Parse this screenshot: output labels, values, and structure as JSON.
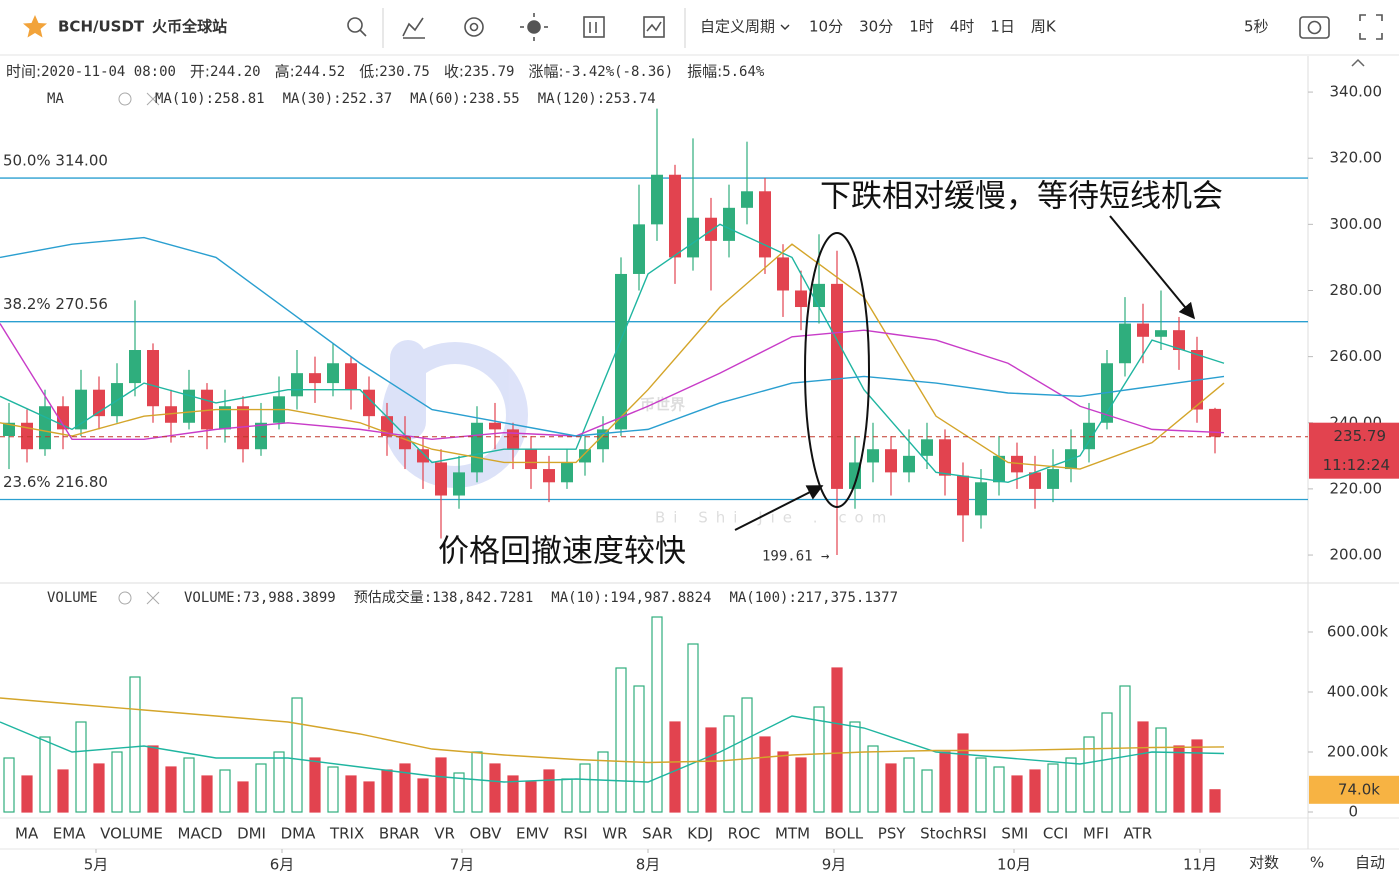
{
  "toolbar": {
    "symbol": "BCH/USDT",
    "exchange": "火币全球站",
    "periods": [
      "自定义周期",
      "10分",
      "30分",
      "1时",
      "4时",
      "1日",
      "周K"
    ],
    "active_period": "1日",
    "refresh": "5秒"
  },
  "info": [
    {
      "label": "时间:",
      "value": "2020-11-04 08:00"
    },
    {
      "label": "开:",
      "value": "244.20"
    },
    {
      "label": "高:",
      "value": "244.52"
    },
    {
      "label": "低:",
      "value": "230.75"
    },
    {
      "label": "收:",
      "value": "235.79"
    },
    {
      "label": "涨幅:",
      "value": "-3.42%(-8.36)"
    },
    {
      "label": "振幅:",
      "value": "5.64%"
    }
  ],
  "price": {
    "legend": {
      "name": "MA",
      "items": [
        {
          "text": "MA(10):258.81",
          "color": "#1fb5a0",
          "values": [
            248,
            238,
            252,
            246,
            250,
            250,
            228,
            232,
            232,
            285,
            300,
            290,
            250,
            225,
            222,
            230,
            265,
            258
          ]
        },
        {
          "text": "MA(30):252.37",
          "color": "#d4a52a",
          "values": [
            240,
            236,
            242,
            244,
            244,
            240,
            232,
            228,
            228,
            250,
            275,
            294,
            278,
            242,
            228,
            226,
            234,
            252
          ]
        },
        {
          "text": "MA(60):238.55",
          "color": "#c83cc8",
          "values": [
            270,
            235,
            235,
            238,
            240,
            238,
            235,
            237,
            236,
            245,
            255,
            266,
            268,
            265,
            258,
            245,
            238,
            237
          ]
        },
        {
          "text": "MA(120):253.74",
          "color": "#2a9fd0",
          "values": [
            290,
            294,
            296,
            290,
            274,
            258,
            244,
            240,
            236,
            238,
            246,
            252,
            254,
            252,
            249,
            248,
            251,
            254
          ]
        }
      ]
    },
    "xlim": [
      0,
      218
    ],
    "ylim": [
      192,
      350
    ],
    "yticks": [
      {
        "value": 200,
        "label": "200.00"
      },
      {
        "value": 220,
        "label": "220.00"
      },
      {
        "value": 240,
        "label": "240.00"
      },
      {
        "value": 260,
        "label": "260.00"
      },
      {
        "value": 280,
        "label": "280.00"
      },
      {
        "value": 300,
        "label": "300.00"
      },
      {
        "value": 320,
        "label": "320.00"
      },
      {
        "value": 340,
        "label": "340.00"
      }
    ],
    "ma_x": [
      0,
      12,
      24,
      36,
      48,
      60,
      72,
      84,
      96,
      108,
      120,
      132,
      144,
      156,
      168,
      180,
      192,
      204
    ],
    "x": [
      1.5,
      4.5,
      7.5,
      10.5,
      13.5,
      16.5,
      19.5,
      22.5,
      25.5,
      28.5,
      31.5,
      34.5,
      37.5,
      40.5,
      43.5,
      46.5,
      49.5,
      52.5,
      55.5,
      58.5,
      61.5,
      64.5,
      67.5,
      70.5,
      73.5,
      76.5,
      79.5,
      82.5,
      85.5,
      88.5,
      91.5,
      94.5,
      97.5,
      100.5,
      103.5,
      106.5,
      109.5,
      112.5,
      115.5,
      118.5,
      121.5,
      124.5,
      127.5,
      130.5,
      133.5,
      136.5,
      139.5,
      142.5,
      145.5,
      148.5,
      151.5,
      154.5,
      157.5,
      160.5,
      163.5,
      166.5,
      169.5,
      172.5,
      175.5,
      178.5,
      181.5,
      184.5,
      187.5,
      190.5,
      193.5,
      196.5,
      199.5,
      202.5
    ],
    "candles": [
      [
        236,
        246,
        226,
        240
      ],
      [
        240,
        244,
        228,
        232
      ],
      [
        232,
        250,
        230,
        245
      ],
      [
        245,
        248,
        232,
        238
      ],
      [
        238,
        256,
        236,
        250
      ],
      [
        250,
        254,
        238,
        242
      ],
      [
        242,
        258,
        240,
        252
      ],
      [
        252,
        277,
        248,
        262
      ],
      [
        262,
        264,
        240,
        245
      ],
      [
        245,
        250,
        234,
        240
      ],
      [
        240,
        256,
        238,
        250
      ],
      [
        250,
        252,
        232,
        238
      ],
      [
        238,
        250,
        234,
        245
      ],
      [
        245,
        248,
        228,
        232
      ],
      [
        232,
        246,
        230,
        240
      ],
      [
        240,
        254,
        238,
        248
      ],
      [
        248,
        262,
        244,
        255
      ],
      [
        255,
        260,
        246,
        252
      ],
      [
        252,
        264,
        248,
        258
      ],
      [
        258,
        260,
        244,
        250
      ],
      [
        250,
        254,
        238,
        242
      ],
      [
        242,
        246,
        230,
        236
      ],
      [
        236,
        242,
        226,
        232
      ],
      [
        232,
        236,
        220,
        228
      ],
      [
        228,
        232,
        205,
        218
      ],
      [
        218,
        230,
        214,
        225
      ],
      [
        225,
        245,
        222,
        240
      ],
      [
        240,
        246,
        232,
        238
      ],
      [
        238,
        240,
        226,
        232
      ],
      [
        232,
        236,
        220,
        226
      ],
      [
        226,
        230,
        216,
        222
      ],
      [
        222,
        232,
        220,
        228
      ],
      [
        228,
        236,
        224,
        232
      ],
      [
        232,
        242,
        228,
        238
      ],
      [
        238,
        290,
        236,
        285
      ],
      [
        285,
        312,
        280,
        300
      ],
      [
        300,
        335,
        295,
        315
      ],
      [
        315,
        318,
        282,
        290
      ],
      [
        290,
        326,
        286,
        302
      ],
      [
        302,
        308,
        280,
        295
      ],
      [
        295,
        312,
        290,
        305
      ],
      [
        305,
        325,
        300,
        310
      ],
      [
        310,
        314,
        285,
        290
      ],
      [
        290,
        294,
        272,
        280
      ],
      [
        280,
        286,
        268,
        275
      ],
      [
        275,
        297,
        270,
        282
      ],
      [
        282,
        292,
        200,
        220
      ],
      [
        220,
        236,
        214,
        228
      ],
      [
        228,
        240,
        222,
        232
      ],
      [
        232,
        236,
        218,
        225
      ],
      [
        225,
        238,
        222,
        230
      ],
      [
        230,
        240,
        226,
        235
      ],
      [
        235,
        238,
        218,
        224
      ],
      [
        224,
        228,
        204,
        212
      ],
      [
        212,
        226,
        208,
        222
      ],
      [
        222,
        236,
        218,
        230
      ],
      [
        230,
        234,
        220,
        225
      ],
      [
        225,
        230,
        214,
        220
      ],
      [
        220,
        232,
        216,
        226
      ],
      [
        226,
        238,
        222,
        232
      ],
      [
        232,
        246,
        228,
        240
      ],
      [
        240,
        262,
        238,
        258
      ],
      [
        258,
        278,
        254,
        270
      ],
      [
        270,
        276,
        258,
        266
      ],
      [
        266,
        280,
        262,
        268
      ],
      [
        268,
        272,
        256,
        262
      ],
      [
        262,
        266,
        240,
        244
      ],
      [
        244.2,
        244.52,
        230.75,
        235.79
      ]
    ],
    "up_color": "#2fae7d",
    "down_color": "#e2434f",
    "fib": [
      {
        "label": "50.0% 314.00",
        "value": 314
      },
      {
        "label": "38.2% 270.56",
        "value": 270.56
      },
      {
        "label": "23.6% 216.80",
        "value": 216.8
      }
    ],
    "last": {
      "value": 235.79,
      "label": "235.79"
    },
    "countdown": "11:12:24",
    "low_mark": {
      "value": 199.61,
      "x": 140,
      "label": "199.61 →"
    },
    "annotations": [
      "下跌相对缓慢，等待短线机会",
      "价格回撤速度较快"
    ],
    "watermark": {
      "cn": "币世界",
      "en": "Bi Shi Jie . com"
    }
  },
  "volume": {
    "legend": {
      "name": "VOLUME",
      "items": [
        {
          "text": "VOLUME:73,988.3899",
          "color": "#333"
        },
        {
          "text": "预估成交量:138,842.7281",
          "color": "#888"
        },
        {
          "text": "MA(10):194,987.8824",
          "color": "#1fb5a0",
          "values": [
            300000,
            200000,
            220000,
            180000,
            180000,
            150000,
            120000,
            100000,
            110000,
            100000,
            200000,
            320000,
            280000,
            200000,
            180000,
            160000,
            200000,
            195000
          ]
        },
        {
          "text": "MA(100):217,375.1377",
          "color": "#d4a52a",
          "values": [
            380000,
            360000,
            340000,
            320000,
            300000,
            260000,
            210000,
            190000,
            175000,
            165000,
            170000,
            190000,
            200000,
            205000,
            205000,
            210000,
            215000,
            217000
          ]
        }
      ]
    },
    "ylim": [
      0,
      760000
    ],
    "yticks": [
      0,
      {
        "value": 200000,
        "label": "200.00k"
      },
      {
        "value": 400000,
        "label": "400.00k"
      },
      {
        "value": 600000,
        "label": "600.00k"
      }
    ],
    "values": [
      180000,
      120000,
      250000,
      140000,
      300000,
      160000,
      200000,
      450000,
      220000,
      150000,
      180000,
      120000,
      140000,
      100000,
      160000,
      200000,
      380000,
      180000,
      150000,
      120000,
      100000,
      140000,
      160000,
      110000,
      180000,
      130000,
      200000,
      160000,
      120000,
      100000,
      140000,
      110000,
      160000,
      200000,
      480000,
      420000,
      650000,
      300000,
      560000,
      280000,
      320000,
      380000,
      250000,
      200000,
      180000,
      350000,
      480000,
      300000,
      220000,
      160000,
      180000,
      140000,
      200000,
      260000,
      180000,
      150000,
      120000,
      140000,
      160000,
      180000,
      250000,
      330000,
      420000,
      300000,
      280000,
      220000,
      240000,
      73988.3899
    ],
    "last": {
      "value": 73988.3899,
      "label": "74.0k"
    }
  },
  "indicators": {
    "tabs": [
      "MA",
      "EMA",
      "VOLUME",
      "MACD",
      "DMI",
      "DMA",
      "TRIX",
      "BRAR",
      "VR",
      "OBV",
      "EMV",
      "RSI",
      "WR",
      "SAR",
      "KDJ",
      "ROC",
      "MTM",
      "BOLL",
      "PSY",
      "StochRSI",
      "SMI",
      "CCI",
      "MFI",
      "ATR"
    ],
    "active": "VOLUME",
    "disabled": "MTM"
  },
  "xaxis": {
    "ticks": [
      {
        "value": 16,
        "label": "5月"
      },
      {
        "value": 47,
        "label": "6月"
      },
      {
        "value": 77,
        "label": "7月"
      },
      {
        "value": 108,
        "label": "8月"
      },
      {
        "value": 139,
        "label": "9月"
      },
      {
        "value": 169,
        "label": "10月"
      },
      {
        "value": 200,
        "label": "11月"
      }
    ],
    "options": [
      "对数",
      "%",
      "自动"
    ],
    "active_option": "自动"
  }
}
